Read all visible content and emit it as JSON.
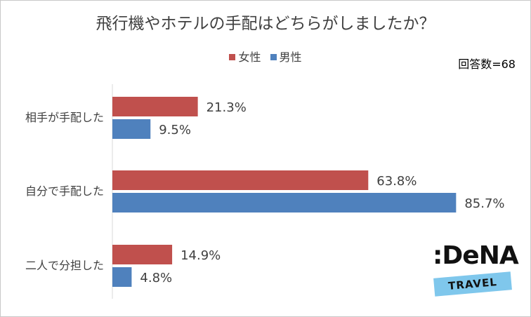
{
  "chart_data": {
    "type": "bar",
    "orientation": "horizontal",
    "title": "飛行機やホテルの手配はどちらがしましたか？",
    "categories": [
      "相手が手配した",
      "自分で手配した",
      "二人で分担した"
    ],
    "series": [
      {
        "name": "女性",
        "color": "#c0504d",
        "values": [
          21.3,
          63.8,
          14.9
        ]
      },
      {
        "name": "男性",
        "color": "#4f81bd",
        "values": [
          9.5,
          85.7,
          4.8
        ]
      }
    ],
    "value_labels": [
      [
        "21.3%",
        "63.8%",
        "14.9%"
      ],
      [
        "9.5%",
        "85.7%",
        "4.8%"
      ]
    ],
    "xlim": [
      0,
      100
    ],
    "grid": false,
    "legend_position": "top"
  },
  "respondents_label": "回答数=68",
  "logo": {
    "wordmark": ":DeNA",
    "ribbon": "TRAVEL",
    "ribbon_color": "#7fc7ec"
  }
}
